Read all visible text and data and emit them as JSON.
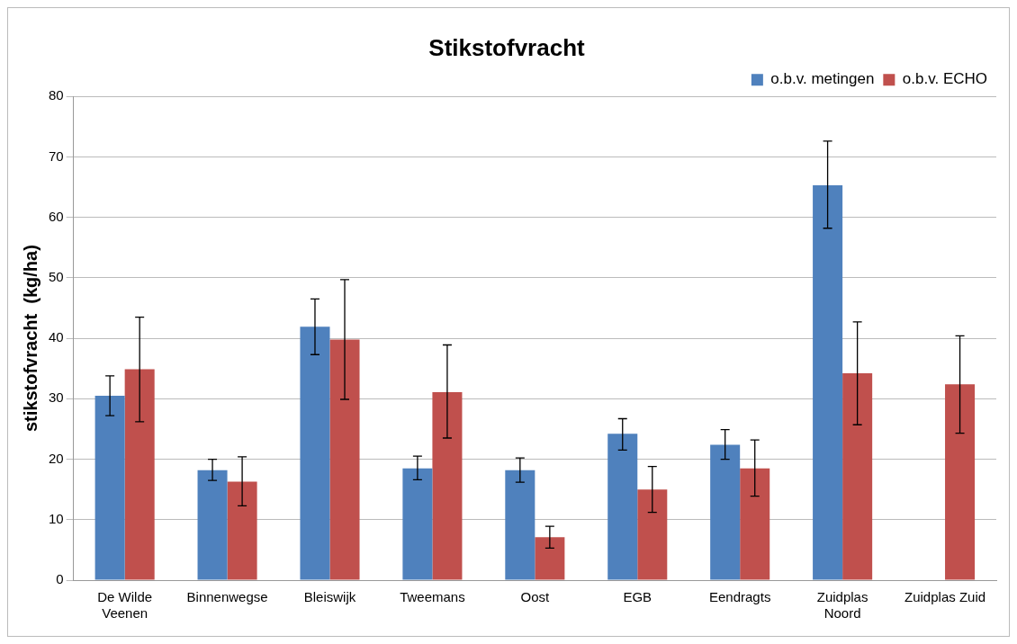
{
  "chart_data": {
    "type": "bar",
    "title": "Stikstofvracht",
    "ylabel": "stikstofvracht  (kg/ha)",
    "categories": [
      "De Wilde Veenen",
      "Binnenwegse",
      "Bleiswijk",
      "Tweemans",
      "Oost",
      "EGB",
      "Eendragts",
      "Zuidplas Noord",
      "Zuidplas Zuid"
    ],
    "series": [
      {
        "name": "o.b.v. metingen",
        "color": "#4f81bd",
        "values": [
          30.5,
          18.2,
          41.9,
          18.5,
          18.2,
          24.2,
          22.4,
          65.3,
          null
        ],
        "errors": [
          [
            27.2,
            33.8
          ],
          [
            16.5,
            20.0
          ],
          [
            37.3,
            46.5
          ],
          [
            16.6,
            20.5
          ],
          [
            16.2,
            20.2
          ],
          [
            21.5,
            26.7
          ],
          [
            20.0,
            24.9
          ],
          [
            58.2,
            72.6
          ],
          null
        ]
      },
      {
        "name": "o.b.v. ECHO",
        "color": "#c0504d",
        "values": [
          34.9,
          16.3,
          39.8,
          31.1,
          7.1,
          15.0,
          18.5,
          34.2,
          32.4
        ],
        "errors": [
          [
            26.2,
            43.5
          ],
          [
            12.3,
            20.4
          ],
          [
            29.9,
            49.7
          ],
          [
            23.5,
            38.9
          ],
          [
            5.3,
            8.9
          ],
          [
            11.2,
            18.8
          ],
          [
            13.9,
            23.2
          ],
          [
            25.7,
            42.7
          ],
          [
            24.3,
            40.4
          ]
        ]
      }
    ],
    "ylim": [
      0,
      80
    ],
    "yticks": [
      0,
      10,
      20,
      30,
      40,
      50,
      60,
      70,
      80
    ],
    "grid": "y",
    "legend": "top right"
  }
}
